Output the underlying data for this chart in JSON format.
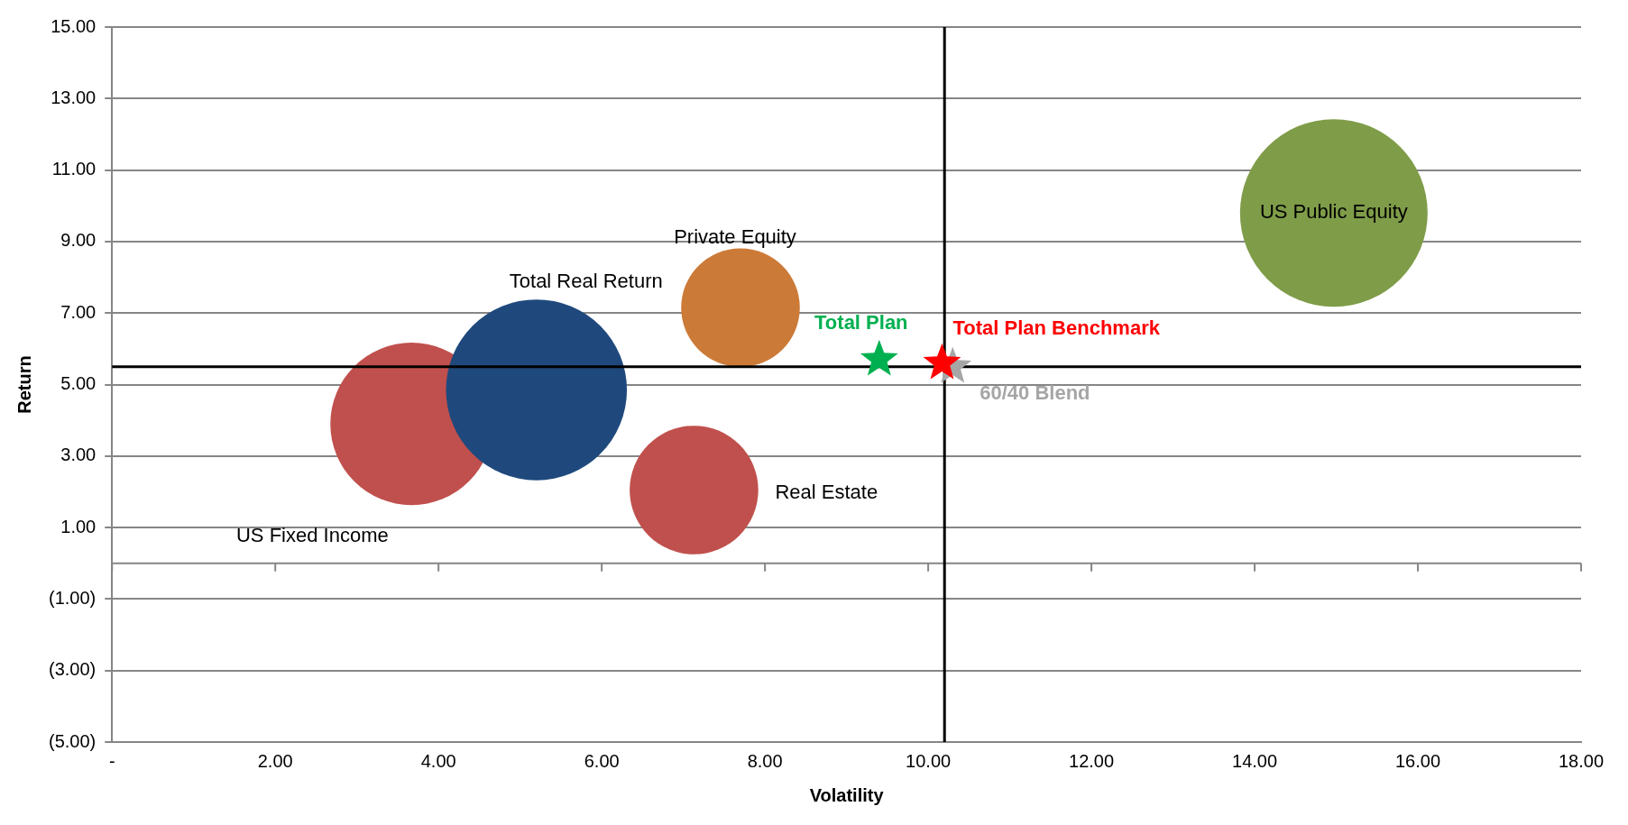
{
  "chart_data": {
    "type": "bubble",
    "xlabel": "Volatility",
    "ylabel": "Return",
    "xlim": [
      0,
      18
    ],
    "ylim": [
      -5,
      15
    ],
    "xticks": [
      {
        "value": 0,
        "label": "-"
      },
      {
        "value": 2,
        "label": "2.00"
      },
      {
        "value": 4,
        "label": "4.00"
      },
      {
        "value": 6,
        "label": "6.00"
      },
      {
        "value": 8,
        "label": "8.00"
      },
      {
        "value": 10,
        "label": "10.00"
      },
      {
        "value": 12,
        "label": "12.00"
      },
      {
        "value": 14,
        "label": "14.00"
      },
      {
        "value": 16,
        "label": "16.00"
      },
      {
        "value": 18,
        "label": "18.00"
      }
    ],
    "yticks": [
      {
        "value": -5,
        "label": "(5.00)"
      },
      {
        "value": -3,
        "label": "(3.00)"
      },
      {
        "value": -1,
        "label": "(1.00)"
      },
      {
        "value": 1,
        "label": "1.00"
      },
      {
        "value": 3,
        "label": "3.00"
      },
      {
        "value": 5,
        "label": "5.00"
      },
      {
        "value": 7,
        "label": "7.00"
      },
      {
        "value": 9,
        "label": "9.00"
      },
      {
        "value": 11,
        "label": "11.00"
      },
      {
        "value": 13,
        "label": "13.00"
      },
      {
        "value": 15,
        "label": "15.00"
      }
    ],
    "grid": "y",
    "legend": false,
    "ref_lines": [
      {
        "axis": "y",
        "value": 5.5,
        "color": "#000000"
      },
      {
        "axis": "x",
        "value": 10.2,
        "color": "#000000"
      }
    ],
    "series": [
      {
        "name": "US Fixed Income",
        "color": "#c0504d",
        "x": [
          3.67
        ],
        "values": [
          3.9
        ],
        "sizes": [
          0.75
        ]
      },
      {
        "name": "Total Real Return",
        "color": "#1f497d",
        "x": [
          5.2
        ],
        "values": [
          4.85
        ],
        "sizes": [
          0.93
        ]
      },
      {
        "name": "Private Equity",
        "color": "#cc7a37",
        "x": [
          7.7
        ],
        "values": [
          7.15
        ],
        "sizes": [
          0.4
        ]
      },
      {
        "name": "Real Estate",
        "color": "#c0504d",
        "x": [
          7.13
        ],
        "values": [
          2.05
        ],
        "sizes": [
          0.47
        ]
      },
      {
        "name": "US Public Equity",
        "color": "#7f9c48",
        "x": [
          14.97
        ],
        "values": [
          9.8
        ],
        "sizes": [
          1
        ]
      },
      {
        "name": "Total Plan",
        "type": "scatter",
        "marker": "star",
        "color": "#00b050",
        "x": [
          9.4
        ],
        "values": [
          5.7
        ]
      },
      {
        "name": "60/40 Blend",
        "type": "scatter",
        "marker": "star",
        "color": "#a6a6a6",
        "x": [
          10.3
        ],
        "values": [
          5.5
        ]
      },
      {
        "name": "Total Plan Benchmark",
        "type": "scatter",
        "marker": "star",
        "color": "#ff0000",
        "x": [
          10.17
        ],
        "values": [
          5.6
        ]
      }
    ]
  }
}
